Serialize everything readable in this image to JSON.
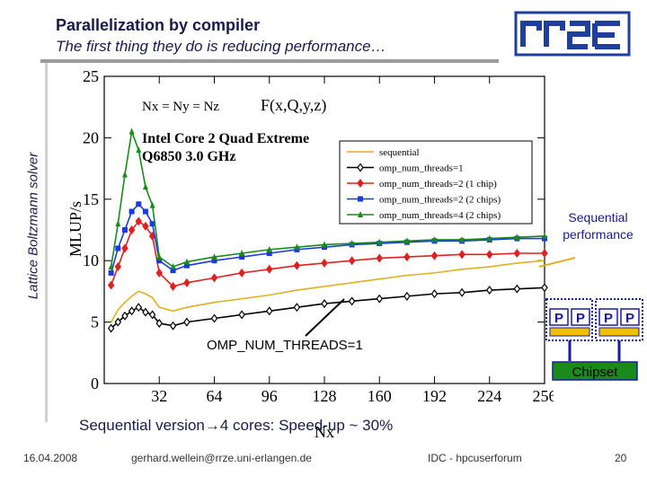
{
  "slide": {
    "title_line1": "Parallelization by compiler",
    "title_line2": "The first thing they do is reducing performance…",
    "side_label": "Lattice Boltzmann solver",
    "annotation_sequential": "Sequential performance",
    "annotation_omp": "OMP_NUM_THREADS=1",
    "speedup_prefix": "Sequential version",
    "speedup_suffix": "4 cores: Speed-up ~ 30%",
    "chip_p_label": "P",
    "chipset_label": "Chipset",
    "footer": {
      "date": "16.04.2008",
      "email": "gerhard.wellein@rrze.uni-erlangen.de",
      "conference": "IDC - hpcuserforum",
      "page": "20"
    },
    "logo_name": "rrze-logo",
    "colors": {
      "title": "#1a1a4a",
      "logo_blue": "#1f3f9f",
      "chip_blue": "#1a1aa0",
      "chip_yellow": "#f0c000"
    }
  },
  "chart_data": {
    "type": "line",
    "xlabel": "Nx",
    "ylabel": "MLUP/s",
    "xlim": [
      0,
      256
    ],
    "ylim": [
      0,
      25
    ],
    "xticks": [
      32,
      64,
      96,
      128,
      160,
      192,
      224,
      256
    ],
    "yticks": [
      0,
      5,
      10,
      15,
      20,
      25
    ],
    "annotation_line1": "Nx = Ny = Nz",
    "annotation_formula": "F(x,Q,y,z)",
    "annotation_cpu1": "Intel Core 2 Quad Extreme",
    "annotation_cpu2": "Q6850 3.0 GHz",
    "legend_position": "top-right",
    "x": [
      4,
      8,
      12,
      16,
      20,
      24,
      28,
      32,
      40,
      48,
      64,
      80,
      96,
      112,
      128,
      144,
      160,
      176,
      192,
      208,
      224,
      240,
      256
    ],
    "series": [
      {
        "name": "sequential",
        "color": "#e0b020",
        "marker": "none",
        "values": [
          5.0,
          6.0,
          6.6,
          7.1,
          7.5,
          7.3,
          7.0,
          6.2,
          5.9,
          6.2,
          6.6,
          6.9,
          7.2,
          7.6,
          7.9,
          8.2,
          8.5,
          8.8,
          9.0,
          9.3,
          9.5,
          9.8,
          10.0
        ]
      },
      {
        "name": "omp_num_threads=1",
        "color": "#000000",
        "marker": "diamond-open",
        "values": [
          4.5,
          5.0,
          5.5,
          5.9,
          6.2,
          5.8,
          5.6,
          4.9,
          4.7,
          5.0,
          5.3,
          5.6,
          5.9,
          6.2,
          6.5,
          6.7,
          6.9,
          7.1,
          7.3,
          7.4,
          7.6,
          7.7,
          7.8
        ]
      },
      {
        "name": "omp_num_threads=2 (1 chip)",
        "color": "#e02020",
        "marker": "diamond",
        "values": [
          8.0,
          9.5,
          11.0,
          12.5,
          13.2,
          12.8,
          12.0,
          9.0,
          7.9,
          8.2,
          8.6,
          9.0,
          9.3,
          9.6,
          9.8,
          10.0,
          10.2,
          10.3,
          10.4,
          10.5,
          10.5,
          10.6,
          10.6
        ]
      },
      {
        "name": "omp_num_threads=2 (2 chips)",
        "color": "#1a3ae0",
        "marker": "square",
        "values": [
          9.0,
          11.0,
          12.5,
          14.0,
          14.6,
          14.0,
          13.0,
          10.0,
          9.2,
          9.6,
          10.0,
          10.3,
          10.6,
          10.9,
          11.1,
          11.3,
          11.4,
          11.5,
          11.6,
          11.6,
          11.7,
          11.8,
          11.8
        ]
      },
      {
        "name": "omp_num_threads=4 (2 chips)",
        "color": "#1a8a1a",
        "marker": "triangle",
        "values": [
          9.5,
          13.0,
          17.0,
          20.5,
          19.0,
          16.0,
          14.5,
          10.3,
          9.5,
          9.9,
          10.3,
          10.6,
          10.9,
          11.1,
          11.3,
          11.4,
          11.5,
          11.6,
          11.7,
          11.7,
          11.8,
          11.9,
          12.0
        ]
      }
    ]
  }
}
